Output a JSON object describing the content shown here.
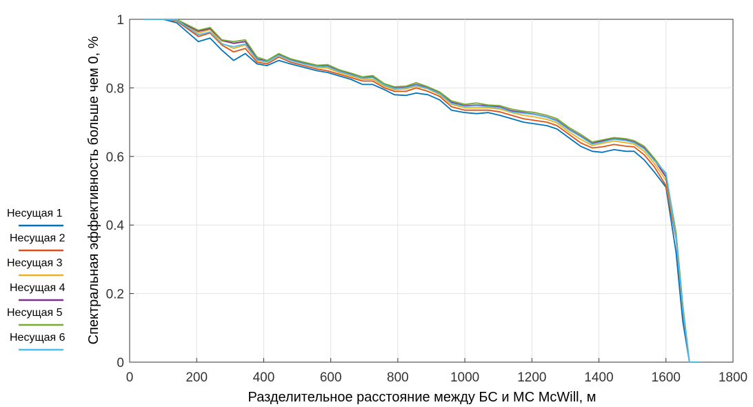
{
  "chart_data": {
    "type": "line",
    "title": "",
    "xlabel": "Разделительное расстояние между  БС и МС McWill, м",
    "ylabel": "Спектральная эффективность больше чем 0, %",
    "xlim": [
      0,
      1800
    ],
    "ylim": [
      0,
      1
    ],
    "x_ticks": [
      0,
      200,
      400,
      600,
      800,
      1000,
      1200,
      1400,
      1600,
      1800
    ],
    "y_ticks": [
      0,
      0.2,
      0.4,
      0.6,
      0.8,
      1
    ],
    "x_tick_labels": [
      "0",
      "200",
      "400",
      "600",
      "800",
      "1000",
      "1200",
      "1400",
      "1600",
      "1800"
    ],
    "y_tick_labels": [
      "0",
      "0.2",
      "0.4",
      "0.6",
      "0.8",
      "1"
    ],
    "grid": true,
    "legend_position": "left",
    "x": [
      40,
      100,
      140,
      205,
      240,
      275,
      310,
      345,
      380,
      410,
      445,
      480,
      520,
      560,
      590,
      625,
      660,
      695,
      725,
      760,
      790,
      825,
      855,
      890,
      925,
      960,
      1000,
      1035,
      1070,
      1105,
      1140,
      1175,
      1210,
      1245,
      1275,
      1310,
      1345,
      1380,
      1410,
      1445,
      1480,
      1505,
      1535,
      1565,
      1600,
      1630,
      1650,
      1670,
      1700
    ],
    "series": [
      {
        "name": "Несущая 1",
        "color": "#0072BD",
        "values": [
          1,
          1,
          0.99,
          0.935,
          0.945,
          0.91,
          0.88,
          0.9,
          0.87,
          0.865,
          0.88,
          0.87,
          0.86,
          0.85,
          0.845,
          0.835,
          0.825,
          0.81,
          0.81,
          0.795,
          0.78,
          0.778,
          0.785,
          0.78,
          0.765,
          0.735,
          0.728,
          0.725,
          0.728,
          0.72,
          0.71,
          0.7,
          0.695,
          0.69,
          0.68,
          0.655,
          0.63,
          0.615,
          0.612,
          0.62,
          0.615,
          0.615,
          0.59,
          0.555,
          0.51,
          0.32,
          0.12,
          0,
          0
        ]
      },
      {
        "name": "Несущая 2",
        "color": "#D95319",
        "values": [
          1,
          1,
          0.995,
          0.95,
          0.96,
          0.925,
          0.905,
          0.915,
          0.875,
          0.87,
          0.89,
          0.875,
          0.865,
          0.855,
          0.85,
          0.84,
          0.83,
          0.82,
          0.82,
          0.8,
          0.79,
          0.79,
          0.8,
          0.79,
          0.775,
          0.745,
          0.735,
          0.735,
          0.735,
          0.73,
          0.72,
          0.71,
          0.705,
          0.7,
          0.69,
          0.665,
          0.64,
          0.625,
          0.628,
          0.635,
          0.63,
          0.628,
          0.605,
          0.57,
          0.515,
          0.36,
          0.15,
          0,
          0
        ]
      },
      {
        "name": "Несущая 3",
        "color": "#EDB120",
        "values": [
          1,
          1,
          0.997,
          0.96,
          0.97,
          0.93,
          0.915,
          0.925,
          0.88,
          0.875,
          0.895,
          0.88,
          0.87,
          0.86,
          0.858,
          0.845,
          0.835,
          0.825,
          0.825,
          0.805,
          0.795,
          0.797,
          0.805,
          0.797,
          0.78,
          0.752,
          0.742,
          0.742,
          0.742,
          0.738,
          0.728,
          0.72,
          0.715,
          0.708,
          0.698,
          0.672,
          0.65,
          0.632,
          0.638,
          0.645,
          0.64,
          0.636,
          0.615,
          0.58,
          0.53,
          0.37,
          0.16,
          0,
          0
        ]
      },
      {
        "name": "Несущая 4",
        "color": "#7E2F8E",
        "values": [
          1,
          1,
          0.998,
          0.965,
          0.973,
          0.938,
          0.93,
          0.935,
          0.885,
          0.878,
          0.898,
          0.883,
          0.873,
          0.864,
          0.864,
          0.85,
          0.84,
          0.83,
          0.832,
          0.81,
          0.8,
          0.802,
          0.81,
          0.8,
          0.785,
          0.758,
          0.748,
          0.75,
          0.748,
          0.744,
          0.733,
          0.728,
          0.723,
          0.715,
          0.705,
          0.68,
          0.66,
          0.638,
          0.645,
          0.652,
          0.648,
          0.642,
          0.625,
          0.59,
          0.54,
          0.375,
          0.165,
          0,
          0
        ]
      },
      {
        "name": "Несущая 5",
        "color": "#77AC30",
        "values": [
          1,
          1,
          1,
          0.968,
          0.976,
          0.94,
          0.935,
          0.94,
          0.89,
          0.88,
          0.9,
          0.885,
          0.875,
          0.866,
          0.868,
          0.853,
          0.843,
          0.832,
          0.836,
          0.812,
          0.803,
          0.805,
          0.815,
          0.803,
          0.788,
          0.762,
          0.752,
          0.756,
          0.75,
          0.748,
          0.738,
          0.732,
          0.728,
          0.72,
          0.71,
          0.685,
          0.665,
          0.642,
          0.648,
          0.655,
          0.652,
          0.646,
          0.63,
          0.595,
          0.548,
          0.378,
          0.168,
          0,
          0
        ]
      },
      {
        "name": "Несущая 6",
        "color": "#4DBEEE",
        "values": [
          1,
          1,
          0.998,
          0.955,
          0.963,
          0.928,
          0.92,
          0.928,
          0.882,
          0.876,
          0.895,
          0.88,
          0.87,
          0.862,
          0.862,
          0.848,
          0.838,
          0.828,
          0.83,
          0.808,
          0.798,
          0.8,
          0.808,
          0.798,
          0.783,
          0.755,
          0.746,
          0.748,
          0.745,
          0.742,
          0.73,
          0.726,
          0.722,
          0.714,
          0.703,
          0.678,
          0.658,
          0.636,
          0.642,
          0.65,
          0.646,
          0.64,
          0.622,
          0.588,
          0.552,
          0.365,
          0.158,
          0,
          0
        ]
      }
    ]
  }
}
